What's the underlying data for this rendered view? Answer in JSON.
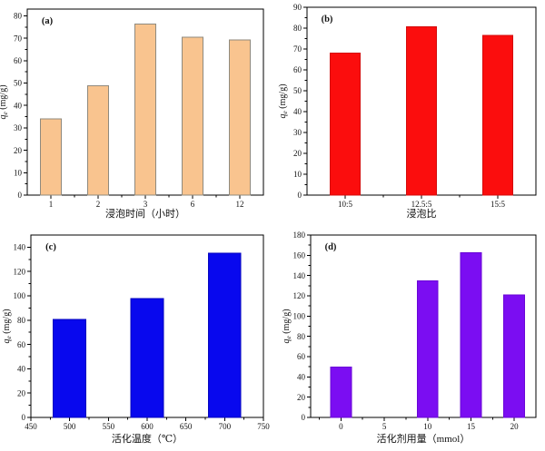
{
  "page": {
    "background": "#ffffff",
    "text_color": "#111111",
    "axis_color": "#000000"
  },
  "chart_data": [
    {
      "id": "a",
      "type": "bar",
      "panel_label": "(a)",
      "x_type": "category",
      "categories": [
        "1",
        "2",
        "3",
        "6",
        "12"
      ],
      "values": [
        34,
        48.7,
        76.4,
        70.5,
        69.2
      ],
      "xlabel": "浸泡时间（小时）",
      "ylabel": {
        "text": "qe (mg/g)",
        "var": "q",
        "sub": "e",
        "rest": " (mg/g)"
      },
      "ylim": [
        0,
        83
      ],
      "yticks": [
        0,
        10,
        20,
        30,
        40,
        50,
        60,
        70,
        80
      ],
      "ytick_step": 10,
      "bar_width_frac": 0.44,
      "bar_fill": "#f9c48f",
      "bar_stroke": "#8f8a7e",
      "grid": false,
      "legend": "none"
    },
    {
      "id": "b",
      "type": "bar",
      "panel_label": "(b)",
      "x_type": "category",
      "categories": [
        "10:5",
        "12.5:5",
        "15:5"
      ],
      "values": [
        68,
        80.6,
        76.5
      ],
      "xlabel": "浸泡比",
      "ylabel": {
        "text": "qe (mg/g)",
        "var": "q",
        "sub": "e",
        "rest": " (mg/g)"
      },
      "ylim": [
        0,
        90
      ],
      "yticks": [
        0,
        10,
        20,
        30,
        40,
        50,
        60,
        70,
        80,
        90
      ],
      "ytick_step": 10,
      "bar_width_frac": 0.39,
      "bar_fill": "#fb0d0d",
      "bar_stroke": "#d40b0b",
      "grid": false,
      "legend": "none"
    },
    {
      "id": "c",
      "type": "bar",
      "panel_label": "(c)",
      "x_type": "linear",
      "x": [
        500,
        600,
        700
      ],
      "values": [
        80.5,
        97.6,
        135
      ],
      "xlabel": "活化温度（℃）",
      "ylabel": {
        "text": "qe (mg/g)",
        "var": "q",
        "sub": "e",
        "rest": " (mg/g)"
      },
      "xlim": [
        450,
        750
      ],
      "xticks": [
        450,
        500,
        550,
        600,
        650,
        700,
        750
      ],
      "x_minor_step": 25,
      "ylim": [
        0,
        150
      ],
      "yticks": [
        0,
        20,
        40,
        60,
        80,
        100,
        120,
        140
      ],
      "ytick_step": 20,
      "bar_width_units": 42,
      "bar_fill": "#0808ee",
      "bar_stroke": "#0606bf",
      "grid": false,
      "legend": "none"
    },
    {
      "id": "d",
      "type": "bar",
      "panel_label": "(d)",
      "x_type": "linear",
      "x": [
        0,
        10,
        15,
        20
      ],
      "values": [
        49.5,
        135,
        162.5,
        120.7
      ],
      "xlabel": "活化剂用量（mmol）",
      "ylabel": {
        "text": "qe (mg/g)",
        "var": "q",
        "sub": "e",
        "rest": " (mg/g)"
      },
      "xlim": [
        -3.5,
        22.5
      ],
      "xticks": [
        0,
        5,
        10,
        15,
        20
      ],
      "x_minor_step": 2.5,
      "ylim": [
        0,
        180
      ],
      "yticks": [
        0,
        20,
        40,
        60,
        80,
        100,
        120,
        140,
        160,
        180
      ],
      "ytick_step": 20,
      "bar_width_units": 2.4,
      "bar_fill": "#7b0df2",
      "bar_stroke": "#6a06d6",
      "grid": false,
      "legend": "none"
    }
  ]
}
